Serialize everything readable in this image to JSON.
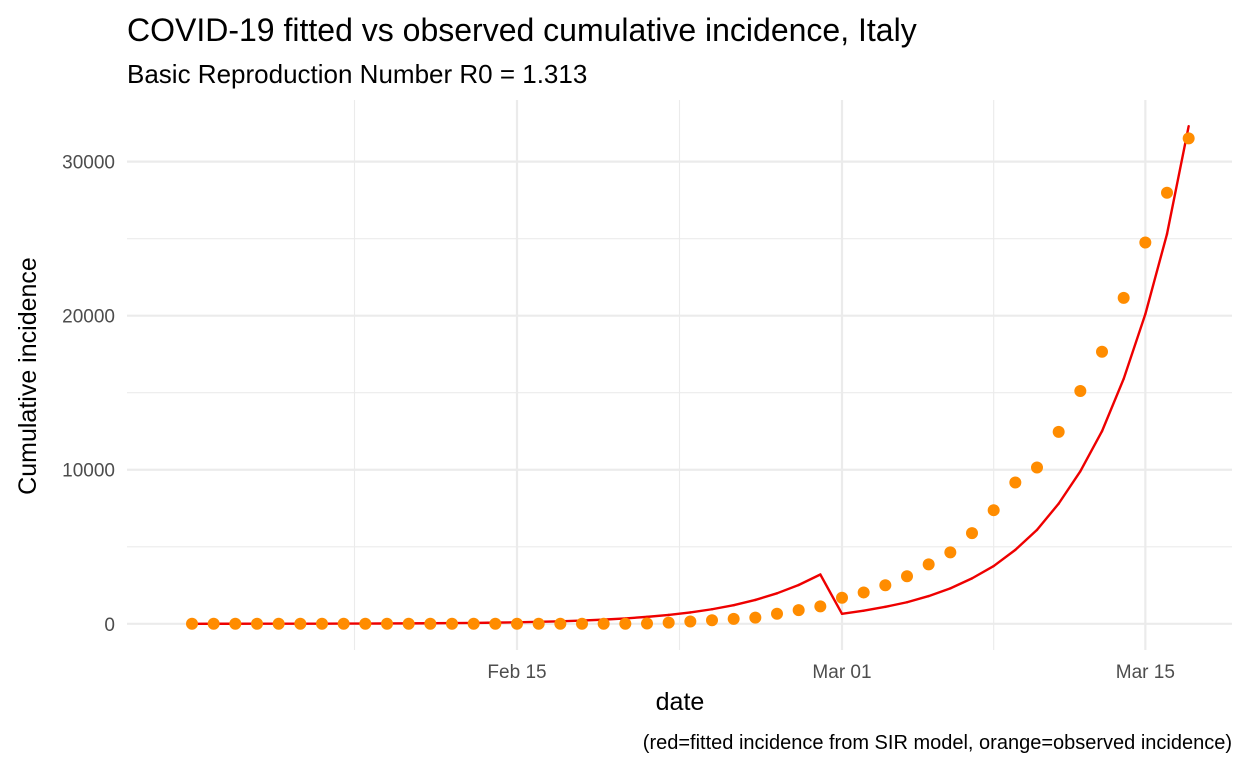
{
  "chart_data": {
    "type": "scatter",
    "title": "COVID-19 fitted vs observed cumulative incidence, Italy",
    "subtitle": "Basic Reproduction Number R0 = 1.313",
    "xlabel": "date",
    "ylabel": "Cumulative incidence",
    "caption": "(red=fitted incidence from SIR model, orange=observed incidence)",
    "x_ticks": [
      {
        "date": "2020-02-15",
        "label": "Feb 15"
      },
      {
        "date": "2020-03-01",
        "label": "Mar 01"
      },
      {
        "date": "2020-03-15",
        "label": "Mar 15"
      }
    ],
    "y_ticks": [
      0,
      10000,
      20000,
      30000
    ],
    "y_tick_labels": [
      "0",
      "10000",
      "20000",
      "30000"
    ],
    "xlim": [
      "2020-01-28",
      "2020-03-19"
    ],
    "ylim": [
      -1700,
      34000
    ],
    "grid": true,
    "legend": "none",
    "colors": {
      "fitted": "#ee0000",
      "observed": "#ff8c00"
    },
    "x": [
      "2020-01-31",
      "2020-02-01",
      "2020-02-02",
      "2020-02-03",
      "2020-02-04",
      "2020-02-05",
      "2020-02-06",
      "2020-02-07",
      "2020-02-08",
      "2020-02-09",
      "2020-02-10",
      "2020-02-11",
      "2020-02-12",
      "2020-02-13",
      "2020-02-14",
      "2020-02-15",
      "2020-02-16",
      "2020-02-17",
      "2020-02-18",
      "2020-02-19",
      "2020-02-20",
      "2020-02-21",
      "2020-02-22",
      "2020-02-23",
      "2020-02-24",
      "2020-02-25",
      "2020-02-26",
      "2020-02-27",
      "2020-02-28",
      "2020-02-29",
      "2020-03-01",
      "2020-03-02",
      "2020-03-03",
      "2020-03-04",
      "2020-03-05",
      "2020-03-06",
      "2020-03-07",
      "2020-03-08",
      "2020-03-09",
      "2020-03-10",
      "2020-03-11",
      "2020-03-12",
      "2020-03-13",
      "2020-03-14",
      "2020-03-15",
      "2020-03-16",
      "2020-03-17"
    ],
    "series": [
      {
        "key": "observed",
        "mark": "point",
        "values": [
          2,
          2,
          2,
          2,
          2,
          2,
          2,
          3,
          3,
          3,
          3,
          3,
          3,
          3,
          3,
          3,
          3,
          3,
          3,
          3,
          3,
          20,
          79,
          150,
          229,
          322,
          400,
          650,
          888,
          1128,
          1694,
          2036,
          2502,
          3089,
          3858,
          4636,
          5883,
          7375,
          9172,
          10149,
          12462,
          15113,
          17660,
          21157,
          24747,
          27980,
          31506
        ]
      },
      {
        "key": "fitted",
        "mark": "line",
        "values": [
          2,
          3,
          4,
          5,
          6,
          8,
          10,
          13,
          17,
          22,
          28,
          36,
          47,
          60,
          77,
          100,
          128,
          165,
          212,
          272,
          350,
          450,
          575,
          735,
          945,
          1210,
          1550,
          1980,
          2520,
          3200,
          650,
          850,
          1100,
          1400,
          1800,
          2300,
          2950,
          3750,
          4800,
          6100,
          7800,
          9900,
          12500,
          15900,
          20100,
          25300,
          32300
        ]
      }
    ]
  }
}
